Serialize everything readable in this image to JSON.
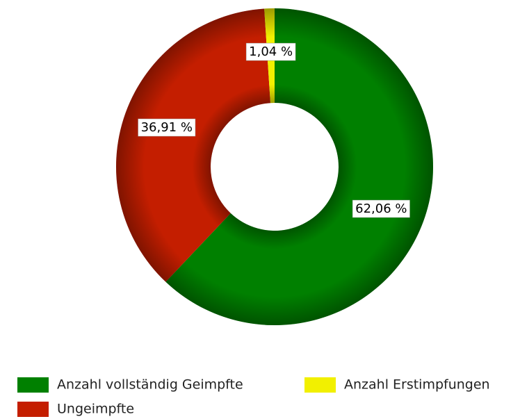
{
  "chart_data": {
    "type": "donut",
    "categories": [
      "Anzahl vollständig Geimpfte",
      "Ungeimpfte",
      "Anzahl Erstimpfungen"
    ],
    "values": [
      62.06,
      36.91,
      1.04
    ],
    "value_labels": [
      "62,06 %",
      "36,91 %",
      "1,04 %"
    ],
    "colors": [
      "#008000",
      "#c41e00",
      "#f2f000"
    ]
  }
}
